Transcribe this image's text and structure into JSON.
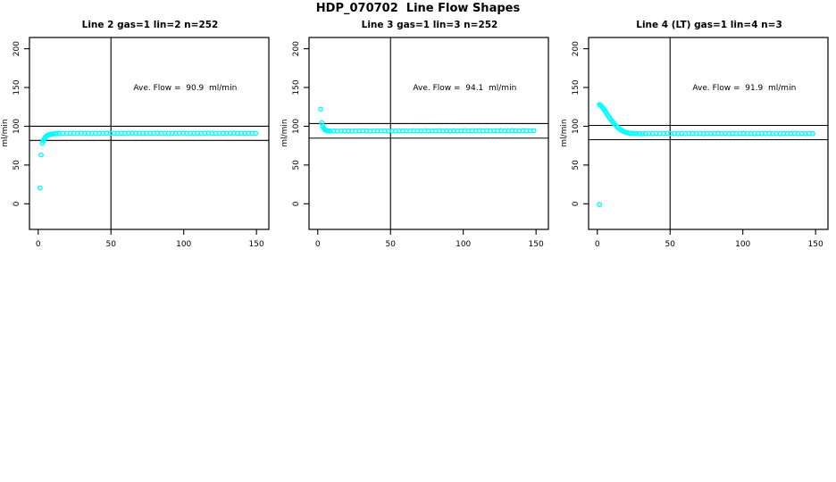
{
  "page": {
    "title": "HDP_070702  Line Flow Shapes"
  },
  "chart_data": [
    {
      "type": "scatter",
      "title": "Line 2 gas=1 lin=2 n=252",
      "ylabel": "ml/min",
      "annotation": "Ave. Flow =  90.9  ml/min",
      "ave_flow": 90.9,
      "marker_color": "#00FFFF",
      "x_ticks": [
        0,
        50,
        100,
        150
      ],
      "y_ticks": [
        0,
        50,
        100,
        150,
        200
      ],
      "xlim": [
        -6,
        158.5
      ],
      "ylim": [
        -33,
        214.5
      ],
      "ref_lines_y": [
        100.0,
        81.8
      ],
      "ref_line_x": 50,
      "grid": false,
      "legend": "none",
      "points": [
        [
          1.2,
          20.5
        ],
        [
          2,
          63
        ],
        [
          2.9,
          78
        ],
        [
          3.5,
          81
        ],
        [
          4.1,
          83.5
        ],
        [
          4.7,
          85.3
        ],
        [
          5.3,
          86.7
        ],
        [
          6,
          87.8
        ],
        [
          6.8,
          88.6
        ],
        [
          7.6,
          89.2
        ],
        [
          8.5,
          89.6
        ],
        [
          9.5,
          89.9
        ],
        [
          10.5,
          90.2
        ],
        [
          11.8,
          90.5
        ],
        [
          13,
          90.7
        ],
        [
          14.5,
          90.8
        ],
        [
          17,
          90.9
        ],
        [
          19.5,
          90.7
        ],
        [
          22,
          91.0
        ],
        [
          24.5,
          90.8
        ],
        [
          27,
          90.9
        ],
        [
          29.5,
          91.1
        ],
        [
          32,
          90.8
        ],
        [
          34.5,
          90.9
        ],
        [
          37,
          90.7
        ],
        [
          39.5,
          91.0
        ],
        [
          42,
          90.8
        ],
        [
          44.5,
          90.9
        ],
        [
          47,
          91.1
        ],
        [
          49.5,
          90.8
        ],
        [
          52,
          90.9
        ],
        [
          54.5,
          90.7
        ],
        [
          57,
          91.0
        ],
        [
          59.5,
          90.8
        ],
        [
          62,
          90.9
        ],
        [
          64.5,
          91.1
        ],
        [
          67,
          90.8
        ],
        [
          69.5,
          90.9
        ],
        [
          72,
          90.7
        ],
        [
          74.5,
          91.0
        ],
        [
          77,
          90.8
        ],
        [
          79.5,
          90.9
        ],
        [
          82,
          91.1
        ],
        [
          84.5,
          90.8
        ],
        [
          87,
          90.9
        ],
        [
          89.5,
          90.7
        ],
        [
          92,
          91.0
        ],
        [
          94.5,
          90.8
        ],
        [
          97,
          90.9
        ],
        [
          99.5,
          91.1
        ],
        [
          102,
          90.8
        ],
        [
          104.5,
          90.9
        ],
        [
          107,
          90.7
        ],
        [
          109.5,
          91.0
        ],
        [
          112,
          90.8
        ],
        [
          114.5,
          90.9
        ],
        [
          117,
          91.1
        ],
        [
          119.5,
          90.8
        ],
        [
          122,
          90.9
        ],
        [
          124.5,
          90.7
        ],
        [
          127,
          91.0
        ],
        [
          129.5,
          90.8
        ],
        [
          132,
          90.9
        ],
        [
          134.5,
          91.1
        ],
        [
          137,
          90.8
        ],
        [
          139.5,
          90.9
        ],
        [
          142,
          90.7
        ],
        [
          144.5,
          91.0
        ],
        [
          147,
          90.8
        ],
        [
          149.5,
          90.9
        ]
      ]
    },
    {
      "type": "scatter",
      "title": "Line 3 gas=1 lin=3 n=252",
      "ylabel": "ml/min",
      "annotation": "Ave. Flow =  94.1  ml/min",
      "ave_flow": 94.1,
      "marker_color": "#00FFFF",
      "x_ticks": [
        0,
        50,
        100,
        150
      ],
      "y_ticks": [
        0,
        50,
        100,
        150,
        200
      ],
      "xlim": [
        -6,
        158.5
      ],
      "ylim": [
        -33,
        214.5
      ],
      "ref_lines_y": [
        103.5,
        84.7
      ],
      "ref_line_x": 50,
      "grid": false,
      "legend": "none",
      "points": [
        [
          2,
          122
        ],
        [
          2.8,
          104.5
        ],
        [
          3.4,
          100.5
        ],
        [
          4,
          97.8
        ],
        [
          4.6,
          96.2
        ],
        [
          5.2,
          95.1
        ],
        [
          5.8,
          94.5
        ],
        [
          6.6,
          94.1
        ],
        [
          7.4,
          93.9
        ],
        [
          8.5,
          93.8
        ],
        [
          11,
          94.0
        ],
        [
          13.5,
          93.8
        ],
        [
          16,
          94.1
        ],
        [
          18.5,
          93.9
        ],
        [
          21,
          94.0
        ],
        [
          23.5,
          93.8
        ],
        [
          26,
          94.1
        ],
        [
          28.5,
          93.9
        ],
        [
          31,
          94.2
        ],
        [
          33.5,
          94.0
        ],
        [
          36,
          93.8
        ],
        [
          38.5,
          94.1
        ],
        [
          41,
          93.9
        ],
        [
          43.5,
          94.2
        ],
        [
          46,
          94.0
        ],
        [
          48.5,
          93.9
        ],
        [
          51,
          94.1
        ],
        [
          53.5,
          93.9
        ],
        [
          56,
          94.2
        ],
        [
          58.5,
          94.0
        ],
        [
          61,
          94.1
        ],
        [
          63.5,
          93.9
        ],
        [
          66,
          94.2
        ],
        [
          68.5,
          94.0
        ],
        [
          71,
          94.1
        ],
        [
          73.5,
          94.3
        ],
        [
          76,
          94.0
        ],
        [
          78.5,
          94.2
        ],
        [
          81,
          94.1
        ],
        [
          83.5,
          94.3
        ],
        [
          86,
          94.1
        ],
        [
          88.5,
          94.2
        ],
        [
          91,
          94.0
        ],
        [
          93.5,
          94.3
        ],
        [
          96,
          94.1
        ],
        [
          98.5,
          94.2
        ],
        [
          101,
          94.4
        ],
        [
          103.5,
          94.1
        ],
        [
          106,
          94.3
        ],
        [
          108.5,
          94.2
        ],
        [
          111,
          94.4
        ],
        [
          113.5,
          94.2
        ],
        [
          116,
          94.3
        ],
        [
          118.5,
          94.1
        ],
        [
          121,
          94.3
        ],
        [
          123.5,
          94.2
        ],
        [
          126,
          94.4
        ],
        [
          128.5,
          94.2
        ],
        [
          131,
          94.3
        ],
        [
          133.5,
          94.5
        ],
        [
          136,
          94.3
        ],
        [
          138.5,
          94.2
        ],
        [
          141,
          94.4
        ],
        [
          143.5,
          94.3
        ],
        [
          146,
          94.2
        ],
        [
          148.5,
          94.4
        ]
      ]
    },
    {
      "type": "scatter",
      "title": "Line 4 (LT) gas=1 lin=4 n=3",
      "ylabel": "ml/min",
      "annotation": "Ave. Flow =  91.9  ml/min",
      "ave_flow": 91.9,
      "marker_color": "#00FFFF",
      "x_ticks": [
        0,
        50,
        100,
        150
      ],
      "y_ticks": [
        0,
        50,
        100,
        150,
        200
      ],
      "xlim": [
        -6,
        158.5
      ],
      "ylim": [
        -33,
        214.5
      ],
      "ref_lines_y": [
        101.1,
        82.7
      ],
      "ref_line_x": 50,
      "grid": false,
      "legend": "none",
      "points": [
        [
          1.5,
          -1
        ],
        [
          1.5,
          128
        ],
        [
          2.1,
          127.2
        ],
        [
          2.7,
          126.2
        ],
        [
          3.3,
          125
        ],
        [
          3.9,
          123.6
        ],
        [
          4.5,
          122
        ],
        [
          5.1,
          120.3
        ],
        [
          5.8,
          118.3
        ],
        [
          6.6,
          116
        ],
        [
          7.4,
          113.7
        ],
        [
          8.2,
          111.5
        ],
        [
          9,
          109.4
        ],
        [
          10,
          106.9
        ],
        [
          11,
          104.6
        ],
        [
          12,
          102.4
        ],
        [
          13,
          100.4
        ],
        [
          14,
          98.6
        ],
        [
          15,
          97
        ],
        [
          16,
          95.6
        ],
        [
          17,
          94.4
        ],
        [
          18,
          93.4
        ],
        [
          19,
          92.6
        ],
        [
          20,
          92
        ],
        [
          21.2,
          91.4
        ],
        [
          22.5,
          91
        ],
        [
          24,
          90.8
        ],
        [
          25.5,
          90.6
        ],
        [
          27,
          90.5
        ],
        [
          29,
          90.4
        ],
        [
          31,
          90.4
        ],
        [
          33,
          90.5
        ],
        [
          35.5,
          90.6
        ],
        [
          38,
          90.4
        ],
        [
          40.5,
          90.7
        ],
        [
          43,
          90.5
        ],
        [
          45.5,
          90.6
        ],
        [
          48,
          90.8
        ],
        [
          50.5,
          90.5
        ],
        [
          53,
          90.6
        ],
        [
          55.5,
          90.4
        ],
        [
          58,
          90.7
        ],
        [
          60.5,
          90.5
        ],
        [
          63,
          90.6
        ],
        [
          65.5,
          90.8
        ],
        [
          68,
          90.5
        ],
        [
          70.5,
          90.6
        ],
        [
          73,
          90.4
        ],
        [
          75.5,
          90.7
        ],
        [
          78,
          90.5
        ],
        [
          80.5,
          90.6
        ],
        [
          83,
          90.8
        ],
        [
          85.5,
          90.5
        ],
        [
          88,
          90.6
        ],
        [
          90.5,
          90.4
        ],
        [
          93,
          90.7
        ],
        [
          95.5,
          90.5
        ],
        [
          98,
          90.6
        ],
        [
          100.5,
          90.8
        ],
        [
          103,
          90.5
        ],
        [
          105.5,
          90.6
        ],
        [
          108,
          90.4
        ],
        [
          110.5,
          90.7
        ],
        [
          113,
          90.5
        ],
        [
          115.5,
          90.6
        ],
        [
          118,
          90.8
        ],
        [
          120.5,
          90.5
        ],
        [
          123,
          90.6
        ],
        [
          125.5,
          90.4
        ],
        [
          128,
          90.7
        ],
        [
          130.5,
          90.5
        ],
        [
          133,
          90.6
        ],
        [
          135.5,
          90.8
        ],
        [
          138,
          90.5
        ],
        [
          140.5,
          90.6
        ],
        [
          143,
          90.4
        ],
        [
          145.5,
          90.7
        ],
        [
          148,
          90.5
        ]
      ]
    }
  ]
}
